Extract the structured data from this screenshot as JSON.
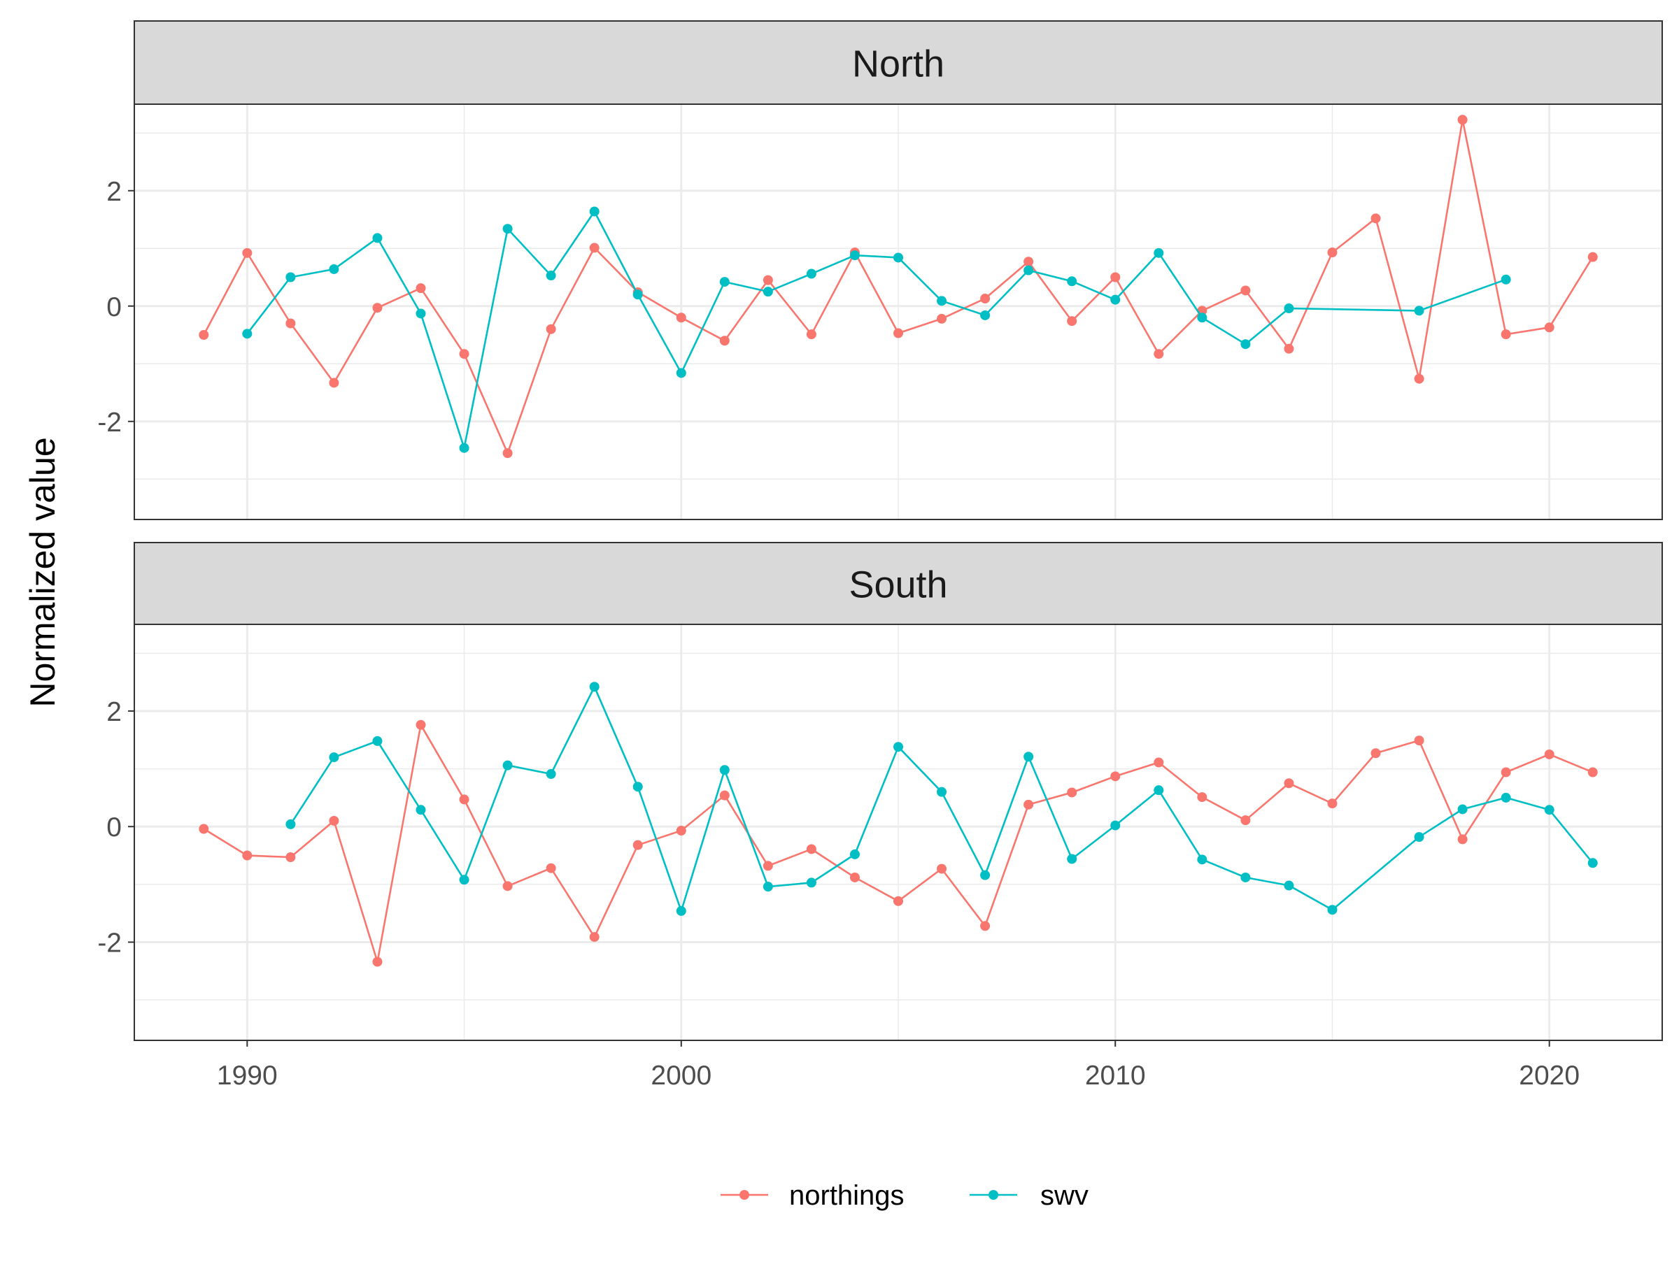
{
  "chart_data": {
    "type": "line",
    "ylabel": "Normalized value",
    "xlabel": "",
    "xlim": [
      1987.4,
      2022.6
    ],
    "ylim": [
      -3.7,
      3.5
    ],
    "x_ticks": [
      1990,
      2000,
      2010,
      2020
    ],
    "y_ticks": [
      -2,
      0,
      2
    ],
    "y_tick_labels": [
      "-2",
      "0",
      "2"
    ],
    "grid": true,
    "legend_position": "bottom",
    "colors": {
      "northings": "#F8766D",
      "swv": "#00BFC4"
    },
    "panels": [
      {
        "title": "North",
        "series": [
          {
            "name": "northings",
            "x": [
              1989,
              1990,
              1991,
              1992,
              1993,
              1994,
              1995,
              1996,
              1997,
              1998,
              1999,
              2000,
              2001,
              2002,
              2003,
              2004,
              2005,
              2006,
              2007,
              2008,
              2009,
              2010,
              2011,
              2012,
              2013,
              2014,
              2015,
              2016,
              2017,
              2018,
              2019,
              2020,
              2021
            ],
            "values": [
              -0.5,
              0.92,
              -0.3,
              -1.33,
              -0.03,
              0.31,
              -0.83,
              -2.55,
              -0.4,
              1.01,
              0.24,
              -0.2,
              -0.6,
              0.45,
              -0.49,
              0.93,
              -0.47,
              -0.22,
              0.13,
              0.77,
              -0.26,
              0.5,
              -0.83,
              -0.08,
              0.27,
              -0.74,
              0.93,
              1.52,
              -1.26,
              3.23,
              -0.49,
              -0.37,
              0.85
            ]
          },
          {
            "name": "swv",
            "x": [
              1990,
              1991,
              1992,
              1993,
              1994,
              1995,
              1996,
              1997,
              1998,
              1999,
              2000,
              2001,
              2002,
              2003,
              2004,
              2005,
              2006,
              2007,
              2008,
              2009,
              2010,
              2011,
              2012,
              2013,
              2014,
              2017,
              2019
            ],
            "values": [
              -0.48,
              0.5,
              0.64,
              1.18,
              -0.13,
              -2.46,
              1.34,
              0.53,
              1.64,
              0.2,
              -1.16,
              0.42,
              0.25,
              0.56,
              0.88,
              0.84,
              0.09,
              -0.16,
              0.62,
              0.43,
              0.11,
              0.92,
              -0.2,
              -0.66,
              -0.04,
              -0.08,
              0.46
            ]
          }
        ]
      },
      {
        "title": "South",
        "series": [
          {
            "name": "northings",
            "x": [
              1989,
              1990,
              1991,
              1992,
              1993,
              1994,
              1995,
              1996,
              1997,
              1998,
              1999,
              2000,
              2001,
              2002,
              2003,
              2004,
              2005,
              2006,
              2007,
              2008,
              2009,
              2010,
              2011,
              2012,
              2013,
              2014,
              2015,
              2016,
              2017,
              2018,
              2019,
              2020,
              2021
            ],
            "values": [
              -0.04,
              -0.5,
              -0.53,
              0.1,
              -2.34,
              1.76,
              0.47,
              -1.03,
              -0.72,
              -1.91,
              -0.32,
              -0.07,
              0.54,
              -0.68,
              -0.39,
              -0.88,
              -1.29,
              -0.73,
              -1.72,
              0.38,
              0.59,
              0.87,
              1.11,
              0.51,
              0.11,
              0.75,
              0.4,
              1.27,
              1.49,
              -0.22,
              0.94,
              1.25,
              0.94
            ]
          },
          {
            "name": "swv",
            "x": [
              1991,
              1992,
              1993,
              1994,
              1995,
              1996,
              1997,
              1998,
              1999,
              2000,
              2001,
              2002,
              2003,
              2004,
              2005,
              2006,
              2007,
              2008,
              2009,
              2010,
              2011,
              2012,
              2013,
              2014,
              2015,
              2017,
              2018,
              2019,
              2020,
              2021
            ],
            "values": [
              0.04,
              1.2,
              1.48,
              0.29,
              -0.92,
              1.06,
              0.91,
              2.42,
              0.69,
              -1.46,
              0.98,
              -1.04,
              -0.97,
              -0.48,
              1.38,
              0.6,
              -0.84,
              1.21,
              -0.56,
              0.02,
              0.63,
              -0.57,
              -0.88,
              -1.02,
              -1.44,
              -0.18,
              0.3,
              0.5,
              0.29,
              -0.63
            ]
          }
        ]
      }
    ]
  }
}
